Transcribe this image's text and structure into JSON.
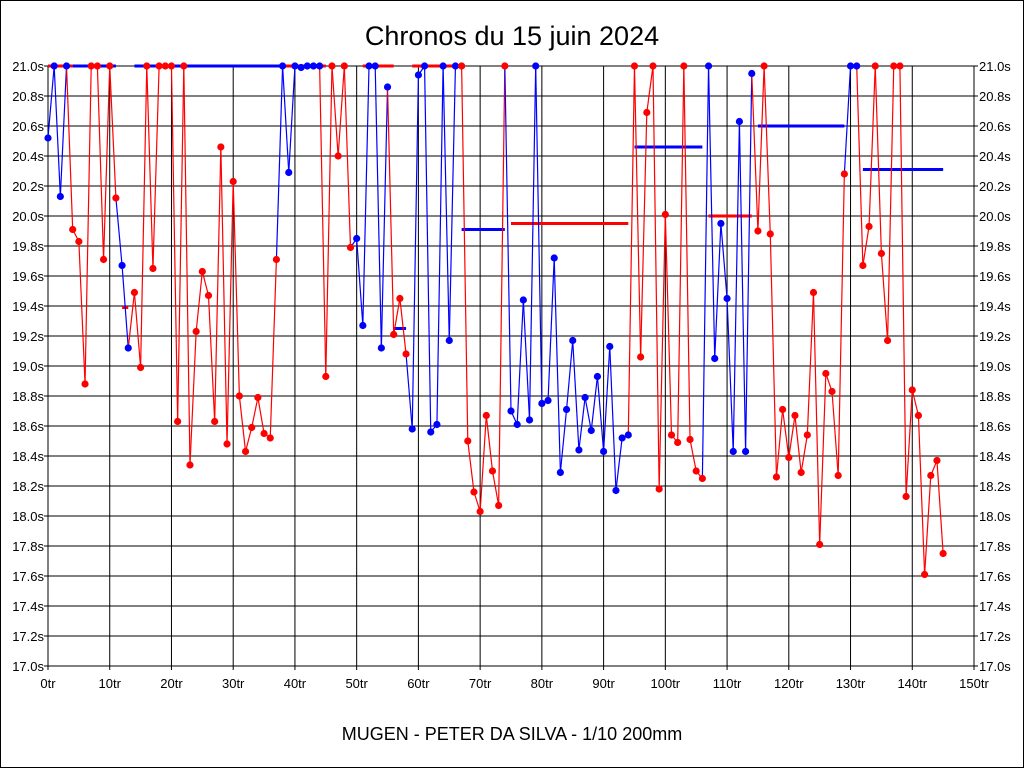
{
  "chart_data": {
    "type": "line",
    "title": "Chronos du 15 juin 2024",
    "xlabel": "MUGEN - PETER DA SILVA - 1/10 200mm",
    "ylabel": "",
    "xlim": [
      0,
      150
    ],
    "ylim": [
      17.0,
      21.0
    ],
    "grid": true,
    "x_ticks": [
      "0tr",
      "10tr",
      "20tr",
      "30tr",
      "40tr",
      "50tr",
      "60tr",
      "70tr",
      "80tr",
      "90tr",
      "100tr",
      "110tr",
      "120tr",
      "130tr",
      "140tr",
      "150tr"
    ],
    "y_ticks": [
      "17.0s",
      "17.2s",
      "17.4s",
      "17.6s",
      "17.8s",
      "18.0s",
      "18.2s",
      "18.4s",
      "18.6s",
      "18.8s",
      "19.0s",
      "19.2s",
      "19.4s",
      "19.6s",
      "19.8s",
      "20.0s",
      "20.2s",
      "20.4s",
      "20.6s",
      "20.8s",
      "21.0s"
    ],
    "colors": {
      "R": "#ff0000",
      "B": "#0000ff"
    },
    "note": "values at 21.0 are clipped at the top of the axis",
    "points": [
      [
        0,
        20.52,
        "B"
      ],
      [
        1,
        21.0,
        "B"
      ],
      [
        2,
        20.13,
        "B"
      ],
      [
        3,
        21.0,
        "B"
      ],
      [
        4,
        19.91,
        "R"
      ],
      [
        5,
        19.83,
        "R"
      ],
      [
        6,
        18.88,
        "R"
      ],
      [
        7,
        21.0,
        "R"
      ],
      [
        8,
        21.0,
        "R"
      ],
      [
        9,
        19.71,
        "R"
      ],
      [
        10,
        21.0,
        "R"
      ],
      [
        11,
        20.12,
        "R"
      ],
      [
        12,
        19.67,
        "B"
      ],
      [
        13,
        19.12,
        "B"
      ],
      [
        14,
        19.49,
        "R"
      ],
      [
        15,
        18.99,
        "R"
      ],
      [
        16,
        21.0,
        "R"
      ],
      [
        17,
        19.65,
        "R"
      ],
      [
        18,
        21.0,
        "R"
      ],
      [
        19,
        21.0,
        "R"
      ],
      [
        20,
        21.0,
        "R"
      ],
      [
        21,
        18.63,
        "R"
      ],
      [
        22,
        21.0,
        "R"
      ],
      [
        23,
        18.34,
        "R"
      ],
      [
        24,
        19.23,
        "R"
      ],
      [
        25,
        19.63,
        "R"
      ],
      [
        26,
        19.47,
        "R"
      ],
      [
        27,
        18.63,
        "R"
      ],
      [
        28,
        20.46,
        "R"
      ],
      [
        29,
        18.48,
        "R"
      ],
      [
        30,
        20.23,
        "R"
      ],
      [
        31,
        18.8,
        "R"
      ],
      [
        32,
        18.43,
        "R"
      ],
      [
        33,
        18.59,
        "R"
      ],
      [
        34,
        18.79,
        "R"
      ],
      [
        35,
        18.55,
        "R"
      ],
      [
        36,
        18.52,
        "R"
      ],
      [
        37,
        19.71,
        "R"
      ],
      [
        38,
        21.0,
        "B"
      ],
      [
        39,
        20.29,
        "B"
      ],
      [
        40,
        21.0,
        "B"
      ],
      [
        41,
        20.99,
        "B"
      ],
      [
        42,
        21.0,
        "B"
      ],
      [
        43,
        21.0,
        "B"
      ],
      [
        44,
        21.0,
        "B"
      ],
      [
        45,
        18.93,
        "R"
      ],
      [
        46,
        21.0,
        "R"
      ],
      [
        47,
        20.4,
        "R"
      ],
      [
        48,
        21.0,
        "R"
      ],
      [
        49,
        19.79,
        "R"
      ],
      [
        50,
        19.85,
        "B"
      ],
      [
        51,
        19.27,
        "B"
      ],
      [
        52,
        21.0,
        "B"
      ],
      [
        53,
        21.0,
        "B"
      ],
      [
        54,
        19.12,
        "B"
      ],
      [
        55,
        20.86,
        "B"
      ],
      [
        56,
        19.21,
        "R"
      ],
      [
        57,
        19.45,
        "R"
      ],
      [
        58,
        19.08,
        "R"
      ],
      [
        59,
        18.58,
        "B"
      ],
      [
        60,
        20.94,
        "B"
      ],
      [
        61,
        21.0,
        "B"
      ],
      [
        62,
        18.56,
        "B"
      ],
      [
        63,
        18.61,
        "B"
      ],
      [
        64,
        21.0,
        "B"
      ],
      [
        65,
        19.17,
        "B"
      ],
      [
        66,
        21.0,
        "B"
      ],
      [
        67,
        21.0,
        "R"
      ],
      [
        68,
        18.5,
        "R"
      ],
      [
        69,
        18.16,
        "R"
      ],
      [
        70,
        18.03,
        "R"
      ],
      [
        71,
        18.67,
        "R"
      ],
      [
        72,
        18.3,
        "R"
      ],
      [
        73,
        18.07,
        "R"
      ],
      [
        74,
        21.0,
        "R"
      ],
      [
        75,
        18.7,
        "B"
      ],
      [
        76,
        18.61,
        "B"
      ],
      [
        77,
        19.44,
        "B"
      ],
      [
        78,
        18.64,
        "B"
      ],
      [
        79,
        21.0,
        "B"
      ],
      [
        80,
        18.75,
        "B"
      ],
      [
        81,
        18.77,
        "B"
      ],
      [
        82,
        19.72,
        "B"
      ],
      [
        83,
        18.29,
        "B"
      ],
      [
        84,
        18.71,
        "B"
      ],
      [
        85,
        19.17,
        "B"
      ],
      [
        86,
        18.44,
        "B"
      ],
      [
        87,
        18.79,
        "B"
      ],
      [
        88,
        18.57,
        "B"
      ],
      [
        89,
        18.93,
        "B"
      ],
      [
        90,
        18.43,
        "B"
      ],
      [
        91,
        19.13,
        "B"
      ],
      [
        92,
        18.17,
        "B"
      ],
      [
        93,
        18.52,
        "B"
      ],
      [
        94,
        18.54,
        "B"
      ],
      [
        95,
        21.0,
        "R"
      ],
      [
        96,
        19.06,
        "R"
      ],
      [
        97,
        20.69,
        "R"
      ],
      [
        98,
        21.0,
        "R"
      ],
      [
        99,
        18.18,
        "R"
      ],
      [
        100,
        20.01,
        "R"
      ],
      [
        101,
        18.54,
        "R"
      ],
      [
        102,
        18.49,
        "R"
      ],
      [
        103,
        21.0,
        "R"
      ],
      [
        104,
        18.51,
        "R"
      ],
      [
        105,
        18.3,
        "R"
      ],
      [
        106,
        18.25,
        "R"
      ],
      [
        107,
        21.0,
        "B"
      ],
      [
        108,
        19.05,
        "B"
      ],
      [
        109,
        19.95,
        "B"
      ],
      [
        110,
        19.45,
        "B"
      ],
      [
        111,
        18.43,
        "B"
      ],
      [
        112,
        20.63,
        "B"
      ],
      [
        113,
        18.43,
        "B"
      ],
      [
        114,
        20.95,
        "B"
      ],
      [
        115,
        19.9,
        "R"
      ],
      [
        116,
        21.0,
        "R"
      ],
      [
        117,
        19.88,
        "R"
      ],
      [
        118,
        18.26,
        "R"
      ],
      [
        119,
        18.71,
        "R"
      ],
      [
        120,
        18.39,
        "R"
      ],
      [
        121,
        18.67,
        "R"
      ],
      [
        122,
        18.29,
        "R"
      ],
      [
        123,
        18.54,
        "R"
      ],
      [
        124,
        19.49,
        "R"
      ],
      [
        125,
        17.81,
        "R"
      ],
      [
        126,
        18.95,
        "R"
      ],
      [
        127,
        18.83,
        "R"
      ],
      [
        128,
        18.27,
        "R"
      ],
      [
        129,
        20.28,
        "R"
      ],
      [
        130,
        21.0,
        "B"
      ],
      [
        131,
        21.0,
        "B"
      ],
      [
        132,
        19.67,
        "R"
      ],
      [
        133,
        19.93,
        "R"
      ],
      [
        134,
        21.0,
        "R"
      ],
      [
        135,
        19.75,
        "R"
      ],
      [
        136,
        19.17,
        "R"
      ],
      [
        137,
        21.0,
        "R"
      ],
      [
        138,
        21.0,
        "R"
      ],
      [
        139,
        18.13,
        "R"
      ],
      [
        140,
        18.84,
        "R"
      ],
      [
        141,
        18.67,
        "R"
      ],
      [
        142,
        17.61,
        "R"
      ],
      [
        143,
        18.27,
        "R"
      ],
      [
        144,
        18.37,
        "R"
      ],
      [
        145,
        17.75,
        "R"
      ]
    ],
    "averages": [
      [
        0,
        4,
        21.0,
        "R"
      ],
      [
        4,
        11,
        21.0,
        "B"
      ],
      [
        14,
        38,
        21.0,
        "B"
      ],
      [
        38,
        45,
        21.0,
        "R"
      ],
      [
        51,
        56,
        21.0,
        "R"
      ],
      [
        59,
        67,
        21.0,
        "R"
      ],
      [
        12,
        13,
        19.39,
        "R"
      ],
      [
        56,
        58,
        19.25,
        "B"
      ],
      [
        67,
        74,
        19.91,
        "B"
      ],
      [
        75,
        94,
        19.95,
        "R"
      ],
      [
        95,
        106,
        20.46,
        "B"
      ],
      [
        107,
        114,
        20.0,
        "R"
      ],
      [
        115,
        129,
        20.6,
        "B"
      ],
      [
        130,
        131,
        21.0,
        "R"
      ],
      [
        132,
        145,
        20.31,
        "B"
      ]
    ]
  }
}
